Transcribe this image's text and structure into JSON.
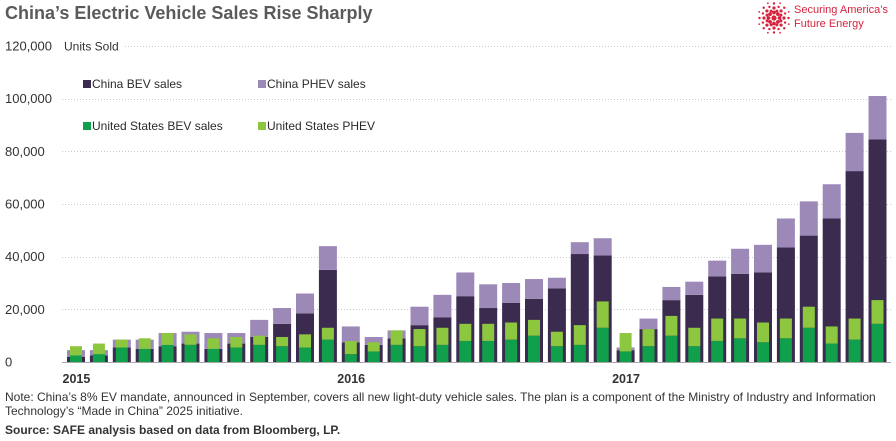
{
  "chart_data": {
    "type": "bar",
    "stacked": true,
    "title": "China’s Electric Vehicle Sales Rise Sharply",
    "ylabel": "Units Sold",
    "ylim": [
      0,
      120000
    ],
    "yticks": [
      0,
      20000,
      40000,
      60000,
      80000,
      100000,
      120000
    ],
    "ytick_labels": [
      "0",
      "20,000",
      "40,000",
      "60,000",
      "80,000",
      "100,000",
      "120,000"
    ],
    "xtick_labels": [
      "2015",
      "2016",
      "2017"
    ],
    "grid": true,
    "legend_placement": "top-left",
    "x": [
      "2015-01",
      "2015-02",
      "2015-03",
      "2015-04",
      "2015-05",
      "2015-06",
      "2015-07",
      "2015-08",
      "2015-09",
      "2015-10",
      "2015-11",
      "2015-12",
      "2016-01",
      "2016-02",
      "2016-03",
      "2016-04",
      "2016-05",
      "2016-06",
      "2016-07",
      "2016-08",
      "2016-09",
      "2016-10",
      "2016-11",
      "2016-12",
      "2017-01",
      "2017-02",
      "2017-03",
      "2017-04",
      "2017-05",
      "2017-06",
      "2017-07",
      "2017-08",
      "2017-09",
      "2017-10",
      "2017-11",
      "2017-12"
    ],
    "groups": [
      {
        "series": [
          {
            "name": "China BEV sales",
            "color": "#3b2c4f",
            "values": [
              2000,
              2500,
              5500,
              5000,
              6000,
              7000,
              5000,
              7000,
              9500,
              14500,
              18500,
              35000,
              7500,
              6500,
              9000,
              14000,
              17000,
              25000,
              20500,
              22500,
              24000,
              28000,
              41000,
              40500,
              4500,
              12500,
              23500,
              25500,
              32500,
              33500,
              34000,
              43500,
              48000,
              54500,
              72500,
              84500
            ]
          },
          {
            "name": "China PHEV sales",
            "color": "#9d89b8",
            "values": [
              2500,
              2000,
              3000,
              3500,
              5000,
              4500,
              6000,
              4000,
              6500,
              6000,
              7500,
              9000,
              6000,
              3000,
              3000,
              7000,
              8500,
              9000,
              9000,
              7500,
              7500,
              4000,
              4500,
              6500,
              1000,
              4000,
              5000,
              5000,
              6000,
              9500,
              10500,
              11000,
              13000,
              13000,
              14500,
              16500
            ]
          }
        ]
      },
      {
        "series": [
          {
            "name": "United States BEV sales",
            "color": "#109f4b",
            "values": [
              2500,
              3000,
              5500,
              5000,
              6500,
              6500,
              5000,
              5500,
              6500,
              6000,
              5500,
              8500,
              3000,
              4000,
              6500,
              6000,
              6500,
              8000,
              8000,
              8500,
              10000,
              6000,
              6500,
              13000,
              4000,
              6000,
              10000,
              6000,
              8000,
              9000,
              7500,
              9000,
              13000,
              7000,
              8500,
              14500
            ]
          },
          {
            "name": "United States PHEV",
            "color": "#8dc63f",
            "values": [
              3500,
              4000,
              3000,
              4000,
              4500,
              4000,
              4000,
              4000,
              3500,
              3500,
              5000,
              4500,
              5000,
              3500,
              5500,
              6500,
              6500,
              6500,
              6500,
              6500,
              6000,
              5500,
              7500,
              10000,
              7000,
              6500,
              7500,
              7000,
              8500,
              7500,
              7500,
              7500,
              8000,
              6500,
              8000,
              9000
            ]
          }
        ]
      }
    ]
  },
  "note_lines": [
    "Note: China’s 8% EV mandate, announced in September, covers all new light-duty vehicle sales. The plan is a component of the Ministry of Industry and Information",
    "Technology’s “Made in China” 2025 initiative."
  ],
  "source": "Source: SAFE analysis based on data from Bloomberg, LP.",
  "logo": {
    "icon": "starburst-icon",
    "color": "#d6243f",
    "text_lines": [
      "Securing America’s",
      "Future Energy"
    ]
  }
}
